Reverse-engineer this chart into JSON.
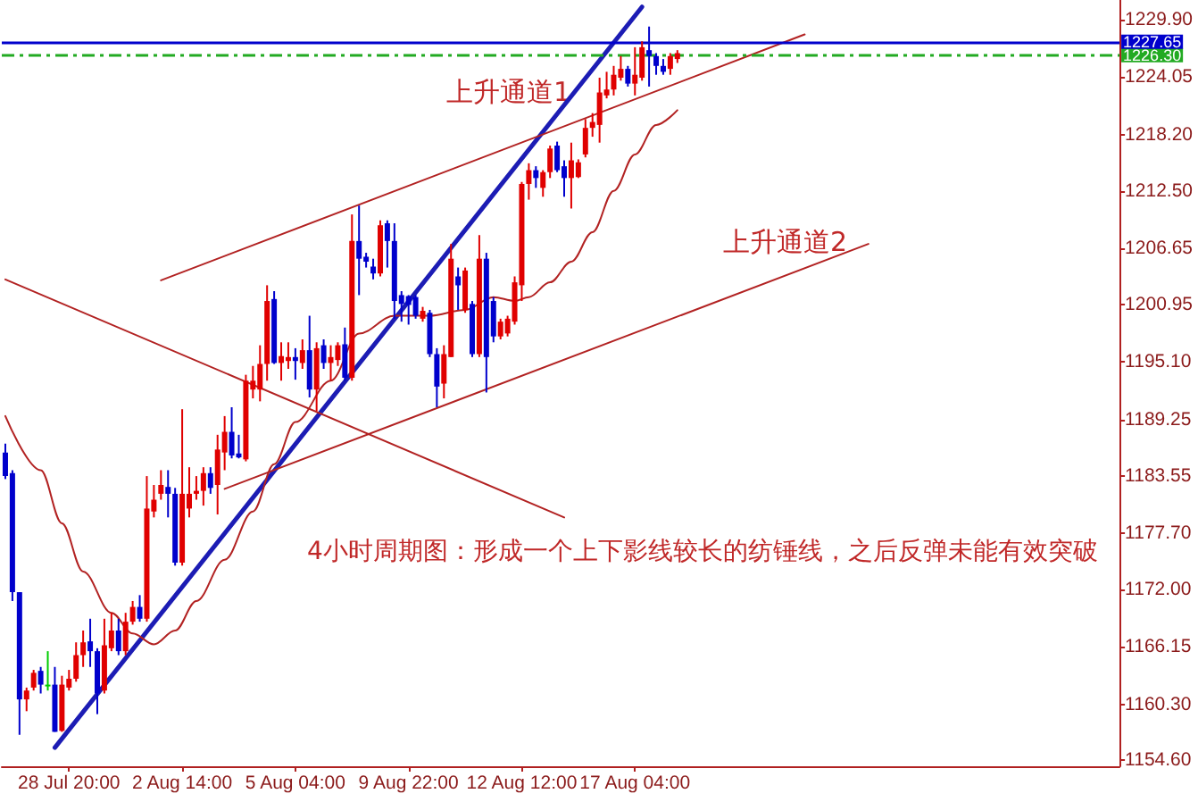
{
  "chart_data": {
    "type": "candlestick",
    "categories": [
      null,
      null,
      null,
      null,
      null,
      null,
      null,
      null,
      null,
      "28 Jul 20:00",
      null,
      null,
      null,
      null,
      null,
      null,
      null,
      null,
      null,
      null,
      null,
      null,
      null,
      null,
      null,
      "2 Aug 14:00",
      null,
      null,
      null,
      null,
      null,
      null,
      null,
      null,
      null,
      null,
      null,
      null,
      null,
      null,
      null,
      "5 Aug 04:00",
      null,
      null,
      null,
      null,
      null,
      null,
      null,
      null,
      null,
      null,
      null,
      null,
      null,
      null,
      null,
      "9 Aug 22:00",
      null,
      null,
      null,
      null,
      null,
      null,
      null,
      null,
      null,
      null,
      null,
      null,
      null,
      null,
      null,
      "12 Aug 12:00",
      null,
      null,
      null,
      null,
      null,
      null,
      null,
      null,
      null,
      null,
      null,
      null,
      null,
      null,
      null,
      "17 Aug 04:00",
      null,
      null,
      null,
      null,
      null,
      null,
      null,
      null,
      null,
      null,
      null,
      null,
      null,
      null,
      null,
      null,
      null,
      null,
      null,
      null,
      null,
      null,
      null,
      null,
      null,
      null,
      null,
      null,
      null,
      null,
      null,
      null,
      null,
      null,
      null,
      null,
      null,
      null,
      null,
      null,
      null,
      null,
      null,
      null,
      null,
      null,
      null,
      null,
      null,
      null,
      null,
      null,
      null,
      null,
      null,
      null,
      null,
      null,
      null,
      null,
      null,
      null,
      null,
      null,
      null,
      null,
      null,
      null
    ],
    "ohlc": [
      [
        1185.9,
        1186.8,
        1183.2,
        1183.5
      ],
      [
        1183.8,
        1184.1,
        1170.8,
        1171.7
      ],
      [
        1171.7,
        1171.7,
        1157.2,
        1160.8
      ],
      [
        1160.8,
        1162.0,
        1159.6,
        1161.7
      ],
      [
        1162.0,
        1163.8,
        1161.7,
        1163.5
      ],
      [
        1163.7,
        1164.1,
        1161.4,
        1162.3
      ],
      [
        1162.3,
        1165.7,
        1161.7,
        1162.3
      ],
      [
        1162.3,
        1164.1,
        1157.5,
        1157.5
      ],
      [
        1157.6,
        1163.2,
        1157.5,
        1162.3
      ],
      [
        1162.0,
        1163.8,
        1161.7,
        1162.9
      ],
      [
        1162.9,
        1166.6,
        1162.6,
        1165.3
      ],
      [
        1165.3,
        1167.8,
        1164.1,
        1166.6
      ],
      [
        1166.7,
        1169.0,
        1164.1,
        1165.7
      ],
      [
        1165.7,
        1166.0,
        1159.3,
        1161.4
      ],
      [
        1161.7,
        1169.0,
        1161.4,
        1166.3
      ],
      [
        1166.0,
        1169.6,
        1165.7,
        1167.8
      ],
      [
        1167.8,
        1169.0,
        1165.3,
        1165.7
      ],
      [
        1165.7,
        1169.6,
        1165.3,
        1168.7
      ],
      [
        1168.7,
        1170.8,
        1168.4,
        1170.2
      ],
      [
        1170.2,
        1171.4,
        1168.7,
        1169.0
      ],
      [
        1169.0,
        1183.5,
        1168.7,
        1180.2
      ],
      [
        1179.9,
        1182.6,
        1179.3,
        1181.1
      ],
      [
        1181.7,
        1184.1,
        1181.1,
        1182.6
      ],
      [
        1182.4,
        1184.1,
        1179.3,
        1181.7
      ],
      [
        1181.7,
        1182.3,
        1174.4,
        1174.7
      ],
      [
        1174.7,
        1190.3,
        1174.4,
        1181.7
      ],
      [
        1180.2,
        1184.4,
        1179.3,
        1181.7
      ],
      [
        1181.7,
        1183.5,
        1181.1,
        1182.0
      ],
      [
        1182.0,
        1184.4,
        1180.5,
        1183.8
      ],
      [
        1183.8,
        1184.4,
        1181.7,
        1182.3
      ],
      [
        1182.6,
        1187.7,
        1179.6,
        1186.2
      ],
      [
        1185.9,
        1189.6,
        1184.1,
        1188.0
      ],
      [
        1188.0,
        1190.5,
        1185.3,
        1185.6
      ],
      [
        1185.8,
        1187.7,
        1185.3,
        1185.4
      ],
      [
        1185.2,
        1193.8,
        1185.0,
        1193.2
      ],
      [
        1192.3,
        1194.7,
        1191.4,
        1193.2
      ],
      [
        1192.3,
        1196.8,
        1191.1,
        1194.9
      ],
      [
        1194.9,
        1202.9,
        1193.2,
        1201.3
      ],
      [
        1201.5,
        1202.3,
        1194.9,
        1195.0
      ],
      [
        1195.0,
        1197.1,
        1193.2,
        1195.7
      ],
      [
        1195.2,
        1197.1,
        1194.4,
        1195.6
      ],
      [
        1195.6,
        1196.5,
        1193.3,
        1195.2
      ],
      [
        1195.0,
        1197.4,
        1194.4,
        1196.3
      ],
      [
        1196.3,
        1199.8,
        1191.5,
        1192.3
      ],
      [
        1192.3,
        1197.1,
        1190.1,
        1196.5
      ],
      [
        1196.8,
        1197.4,
        1194.4,
        1195.0
      ],
      [
        1195.0,
        1196.8,
        1193.2,
        1195.6
      ],
      [
        1195.3,
        1197.1,
        1194.7,
        1196.8
      ],
      [
        1196.9,
        1198.6,
        1193.2,
        1193.5
      ],
      [
        1193.5,
        1210.1,
        1193.2,
        1207.4
      ],
      [
        1207.4,
        1211.0,
        1201.9,
        1205.6
      ],
      [
        1205.8,
        1206.2,
        1204.7,
        1205.3
      ],
      [
        1204.8,
        1205.6,
        1203.5,
        1204.1
      ],
      [
        1204.1,
        1209.5,
        1203.8,
        1209.0
      ],
      [
        1209.2,
        1209.5,
        1204.7,
        1207.4
      ],
      [
        1207.4,
        1209.2,
        1199.5,
        1201.3
      ],
      [
        1201.9,
        1202.3,
        1199.2,
        1201.0
      ],
      [
        1201.8,
        1201.9,
        1198.9,
        1200.9
      ],
      [
        1201.7,
        1201.9,
        1199.5,
        1199.8
      ],
      [
        1199.5,
        1200.7,
        1199.2,
        1200.3
      ],
      [
        1200.1,
        1200.4,
        1195.6,
        1195.9
      ],
      [
        1195.9,
        1196.5,
        1190.5,
        1192.6
      ],
      [
        1192.9,
        1196.8,
        1191.4,
        1195.9
      ],
      [
        1195.6,
        1207.1,
        1195.6,
        1205.6
      ],
      [
        1203.8,
        1204.7,
        1200.4,
        1202.9
      ],
      [
        1200.4,
        1204.7,
        1200.1,
        1204.4
      ],
      [
        1201.0,
        1201.3,
        1195.6,
        1195.9
      ],
      [
        1195.9,
        1208.0,
        1195.6,
        1205.6
      ],
      [
        1205.6,
        1206.2,
        1192.0,
        1195.6
      ],
      [
        1201.3,
        1201.7,
        1197.1,
        1197.7
      ],
      [
        1197.7,
        1199.5,
        1197.4,
        1199.2
      ],
      [
        1198.0,
        1199.8,
        1197.7,
        1199.5
      ],
      [
        1199.2,
        1203.8,
        1198.9,
        1203.2
      ],
      [
        1202.9,
        1213.4,
        1201.3,
        1213.2
      ],
      [
        1213.2,
        1215.3,
        1211.6,
        1214.6
      ],
      [
        1214.6,
        1215.0,
        1212.8,
        1213.8
      ],
      [
        1212.8,
        1214.6,
        1211.9,
        1214.4
      ],
      [
        1214.4,
        1217.1,
        1213.8,
        1216.8
      ],
      [
        1217.1,
        1217.5,
        1214.4,
        1214.6
      ],
      [
        1215.0,
        1215.6,
        1211.9,
        1213.8
      ],
      [
        1213.8,
        1217.4,
        1210.7,
        1215.6
      ],
      [
        1213.9,
        1215.7,
        1213.8,
        1215.4
      ],
      [
        1216.2,
        1219.8,
        1215.9,
        1218.9
      ],
      [
        1218.9,
        1220.4,
        1218.0,
        1219.5
      ],
      [
        1219.2,
        1224.0,
        1217.4,
        1222.5
      ],
      [
        1222.2,
        1224.6,
        1221.9,
        1222.8
      ],
      [
        1222.8,
        1225.2,
        1222.2,
        1224.3
      ],
      [
        1224.0,
        1226.2,
        1223.7,
        1224.9
      ],
      [
        1224.9,
        1225.2,
        1223.1,
        1223.4
      ],
      [
        1223.4,
        1227.1,
        1222.2,
        1224.3
      ],
      [
        1224.0,
        1227.7,
        1223.7,
        1227.1
      ],
      [
        1226.8,
        1229.2,
        1223.1,
        1226.2
      ],
      [
        1226.2,
        1226.5,
        1224.3,
        1225.2
      ],
      [
        1225.2,
        1225.9,
        1224.3,
        1224.6
      ],
      [
        1224.9,
        1226.5,
        1224.3,
        1226.2
      ],
      [
        1225.9,
        1226.8,
        1225.5,
        1226.5
      ],
      null,
      null,
      null,
      null,
      null,
      null,
      null,
      null,
      null,
      null,
      null,
      null,
      null,
      null,
      null,
      null,
      null,
      null,
      null,
      null,
      null,
      null,
      null,
      null,
      null,
      null,
      null,
      null,
      null,
      null,
      null,
      null,
      null,
      null,
      null,
      null,
      null,
      null,
      null,
      null,
      null,
      null,
      null,
      null,
      null,
      null,
      null,
      null,
      null,
      null,
      null,
      null,
      null,
      null,
      null,
      null,
      null,
      null,
      null,
      null,
      null,
      null
    ],
    "colors": [
      "#0000cc",
      "#0000cc",
      "#0000cc",
      "#e00000",
      "#e00000",
      "#0000cc",
      "#00cc00",
      "#0000cc",
      "#e00000",
      "#e00000",
      "#e00000",
      "#e00000",
      "#0000cc",
      "#0000cc",
      "#e00000",
      "#e00000",
      "#0000cc",
      "#e00000",
      "#e00000",
      "#0000cc",
      "#e00000",
      "#e00000",
      "#e00000",
      "#0000cc",
      "#0000cc",
      "#e00000",
      "#e00000",
      "#e00000",
      "#e00000",
      "#0000cc",
      "#e00000",
      "#e00000",
      "#0000cc",
      "#0000cc",
      "#e00000",
      "#e00000",
      "#e00000",
      "#e00000",
      "#0000cc",
      "#e00000",
      "#e00000",
      "#0000cc",
      "#e00000",
      "#0000cc",
      "#e00000",
      "#0000cc",
      "#e00000",
      "#e00000",
      "#0000cc",
      "#e00000",
      "#0000cc",
      "#0000cc",
      "#0000cc",
      "#e00000",
      "#0000cc",
      "#0000cc",
      "#0000cc",
      "#0000cc",
      "#0000cc",
      "#e00000",
      "#0000cc",
      "#0000cc",
      "#e00000",
      "#e00000",
      "#0000cc",
      "#e00000",
      "#0000cc",
      "#e00000",
      "#0000cc",
      "#0000cc",
      "#e00000",
      "#e00000",
      "#e00000",
      "#e00000",
      "#e00000",
      "#0000cc",
      "#e00000",
      "#e00000",
      "#0000cc",
      "#0000cc",
      "#e00000",
      "#e00000",
      "#e00000",
      "#e00000",
      "#e00000",
      "#e00000",
      "#e00000",
      "#e00000",
      "#0000cc",
      "#e00000",
      "#e00000",
      "#0000cc",
      "#0000cc",
      "#0000cc",
      "#e00000",
      "#e00000",
      null,
      null,
      null,
      null,
      null,
      null,
      null,
      null,
      null,
      null,
      null,
      null,
      null,
      null,
      null,
      null,
      null,
      null,
      null,
      null,
      null,
      null,
      null,
      null,
      null,
      null,
      null,
      null,
      null,
      null,
      null,
      null,
      null,
      null,
      null,
      null,
      null,
      null,
      null,
      null,
      null,
      null,
      null,
      null,
      null,
      null,
      null,
      null,
      null,
      null,
      null,
      null,
      null,
      null,
      null,
      null,
      null,
      null,
      null,
      null,
      null,
      null
    ],
    "series": [
      {
        "type": "line",
        "color": "#1c1cb4",
        "values": [
          null,
          null,
          null,
          null,
          null,
          null,
          null,
          1155.9,
          null,
          null,
          null,
          null,
          null,
          null,
          null,
          null,
          null,
          null,
          null,
          null,
          null,
          null,
          null,
          null,
          null,
          null,
          null,
          null,
          null,
          null,
          null,
          null,
          null,
          null,
          null,
          null,
          null,
          null,
          null,
          null,
          null,
          null,
          null,
          null,
          null,
          null,
          null,
          null,
          null,
          null,
          null,
          null,
          null,
          null,
          null,
          null,
          null,
          null,
          null,
          null,
          null,
          null,
          null,
          null,
          null,
          null,
          null,
          null,
          null,
          null,
          null,
          null,
          null,
          null,
          null,
          null,
          null,
          null,
          null,
          null,
          null,
          null,
          null,
          null,
          null,
          null,
          null,
          null,
          null,
          null,
          1231.2,
          null,
          null,
          null,
          null,
          null,
          null,
          null,
          null,
          null,
          null,
          null,
          null,
          null,
          null,
          null,
          null,
          null,
          null,
          null,
          null,
          null,
          null,
          null,
          null,
          null,
          null,
          null,
          null,
          null,
          null,
          null,
          null,
          null,
          null,
          null,
          null,
          null,
          null,
          null,
          null,
          null,
          null,
          null,
          null,
          null,
          null,
          null,
          null,
          null,
          null,
          null,
          null,
          null,
          null,
          null,
          null,
          null,
          null,
          null,
          null,
          null,
          null,
          null,
          null,
          null,
          null,
          null
        ]
      },
      {
        "type": "line",
        "color": "#b22222",
        "values": [
          null,
          null,
          null,
          null,
          null,
          null,
          null,
          null,
          null,
          null,
          null,
          null,
          null,
          null,
          null,
          null,
          null,
          null,
          null,
          null,
          null,
          null,
          1203.4,
          null,
          null,
          null,
          null,
          null,
          null,
          null,
          null,
          null,
          null,
          null,
          null,
          null,
          null,
          null,
          null,
          null,
          null,
          null,
          null,
          null,
          null,
          null,
          null,
          null,
          null,
          null,
          null,
          null,
          null,
          null,
          null,
          null,
          null,
          null,
          null,
          null,
          null,
          null,
          null,
          null,
          null,
          null,
          null,
          null,
          null,
          null,
          null,
          null,
          null,
          null,
          null,
          null,
          null,
          null,
          null,
          null,
          null,
          null,
          null,
          null,
          null,
          null,
          null,
          null,
          null,
          null,
          null,
          null,
          null,
          null,
          null,
          null,
          null,
          null,
          null,
          null,
          null,
          null,
          null,
          null,
          null,
          null,
          null,
          null,
          null,
          null,
          null,
          null,
          null,
          1228.4,
          null,
          null,
          null,
          null,
          null,
          null,
          null,
          null,
          null,
          null,
          null,
          null,
          null,
          null,
          null,
          null,
          null,
          null,
          null,
          null,
          null,
          null,
          null,
          null,
          null,
          null,
          null,
          null,
          null,
          null,
          null,
          null,
          null,
          null,
          null,
          null,
          null,
          null,
          null,
          null,
          null,
          null,
          null,
          null
        ]
      },
      {
        "type": "line",
        "color": "#b22222",
        "values": [
          null,
          null,
          null,
          null,
          null,
          null,
          null,
          null,
          null,
          null,
          null,
          null,
          null,
          null,
          null,
          null,
          null,
          null,
          null,
          null,
          null,
          null,
          null,
          null,
          null,
          null,
          null,
          null,
          null,
          null,
          null,
          1182.2,
          null,
          null,
          null,
          null,
          null,
          null,
          null,
          null,
          null,
          null,
          null,
          null,
          null,
          null,
          null,
          null,
          null,
          null,
          null,
          null,
          null,
          null,
          null,
          null,
          null,
          null,
          null,
          null,
          null,
          null,
          null,
          null,
          null,
          null,
          null,
          null,
          null,
          null,
          null,
          null,
          null,
          null,
          null,
          null,
          null,
          null,
          null,
          null,
          null,
          null,
          null,
          null,
          null,
          null,
          null,
          null,
          null,
          null,
          null,
          null,
          null,
          null,
          null,
          null,
          null,
          null,
          null,
          null,
          null,
          null,
          null,
          null,
          null,
          null,
          null,
          null,
          null,
          null,
          null,
          null,
          null,
          null,
          null,
          null,
          null,
          null,
          null,
          null,
          null,
          null,
          1207.1,
          null,
          null,
          null,
          null,
          null,
          null,
          null,
          null,
          null,
          null,
          null,
          null,
          null,
          null,
          null,
          null,
          null,
          null,
          null,
          null,
          null,
          null,
          null,
          null,
          null,
          null,
          null,
          null,
          null,
          null,
          null,
          null,
          null,
          null,
          null
        ]
      },
      {
        "type": "line",
        "color": "#b22222",
        "values": [
          1203.5,
          null,
          null,
          null,
          null,
          null,
          null,
          null,
          null,
          null,
          null,
          null,
          null,
          null,
          null,
          null,
          null,
          null,
          null,
          null,
          null,
          null,
          null,
          null,
          null,
          null,
          null,
          null,
          null,
          null,
          null,
          null,
          null,
          null,
          null,
          null,
          null,
          null,
          null,
          null,
          null,
          null,
          null,
          null,
          null,
          null,
          null,
          null,
          null,
          null,
          null,
          null,
          null,
          null,
          null,
          null,
          null,
          null,
          null,
          null,
          null,
          null,
          null,
          null,
          null,
          null,
          null,
          null,
          null,
          null,
          null,
          null,
          null,
          null,
          null,
          null,
          null,
          null,
          null,
          1179.3,
          null,
          null,
          null,
          null,
          null,
          null,
          null,
          null,
          null,
          null,
          null,
          null,
          null,
          null,
          null,
          null,
          null,
          null,
          null,
          null,
          null,
          null,
          null,
          null,
          null,
          null,
          null,
          null,
          null,
          null,
          null,
          null,
          null,
          null,
          null,
          null,
          null,
          null,
          null,
          null,
          null,
          null,
          null,
          null,
          null,
          null,
          null,
          null,
          null,
          null,
          null,
          null,
          null,
          null,
          null,
          null,
          null,
          null,
          null,
          null,
          null,
          null,
          null,
          null,
          null,
          null,
          null,
          null,
          null,
          null,
          null,
          null,
          null,
          null,
          null,
          null,
          null,
          null
        ]
      },
      {
        "type": "line",
        "color": "#b22222",
        "values": [
          1189.6,
          null,
          null,
          null,
          null,
          1184.1,
          null,
          null,
          1178.7,
          null,
          null,
          1173.8,
          null,
          null,
          null,
          1169.6,
          null,
          null,
          1167.5,
          null,
          null,
          1166.4,
          null,
          null,
          1167.8,
          null,
          null,
          1170.8,
          null,
          null,
          null,
          1175.0,
          null,
          null,
          null,
          1179.9,
          null,
          null,
          1184.7,
          null,
          null,
          1189.0,
          null,
          null,
          null,
          null,
          1193.2,
          null,
          null,
          null,
          1198.0,
          null,
          null,
          null,
          null,
          1199.8,
          null,
          null,
          null,
          null,
          1199.8,
          null,
          null,
          null,
          null,
          1200.4,
          null,
          null,
          null,
          1201.7,
          null,
          null,
          1201.3,
          null,
          1201.7,
          null,
          null,
          1203.2,
          null,
          null,
          1205.3,
          null,
          null,
          1208.3,
          null,
          null,
          1212.5,
          null,
          null,
          1216.2,
          null,
          null,
          1219.2,
          null,
          null,
          1220.7,
          null,
          null,
          null,
          null,
          null,
          null,
          null,
          null,
          null,
          null,
          null,
          null,
          null,
          null,
          null,
          null,
          null,
          null,
          null,
          null,
          null,
          null,
          null,
          null,
          null,
          null,
          null,
          null,
          null,
          null,
          null,
          null,
          null,
          null,
          null,
          null,
          null,
          null,
          null,
          null,
          null,
          null,
          null,
          null,
          null,
          null,
          null,
          null,
          null,
          null,
          null,
          null,
          null,
          null,
          null,
          null,
          null,
          null,
          null,
          null,
          null,
          null
        ]
      }
    ],
    "ylim": [
      1154.0,
      1231.9
    ],
    "yticks": [
      {
        "value": 1229.9,
        "label": "1229.90"
      },
      {
        "value": 1224.05,
        "label": "1224.05"
      },
      {
        "value": 1218.2,
        "label": "1218.20"
      },
      {
        "value": 1212.5,
        "label": "1212.50"
      },
      {
        "value": 1206.65,
        "label": "1206.65"
      },
      {
        "value": 1200.95,
        "label": "1200.95"
      },
      {
        "value": 1195.1,
        "label": "1195.10"
      },
      {
        "value": 1189.25,
        "label": "1189.25"
      },
      {
        "value": 1183.55,
        "label": "1183.55"
      },
      {
        "value": 1177.7,
        "label": "1177.70"
      },
      {
        "value": 1172.0,
        "label": "1172.00"
      },
      {
        "value": 1166.15,
        "label": "1166.15"
      },
      {
        "value": 1160.3,
        "label": "1160.30"
      },
      {
        "value": 1154.6,
        "label": "1154.60"
      }
    ],
    "ref_lines": [
      {
        "axis": "y",
        "value": 1227.65,
        "label": "1227.65",
        "color": "#0000cc"
      },
      {
        "axis": "y",
        "value": 1226.3,
        "label": "1226.30",
        "color": "#22aa22",
        "line_style": "dashed"
      }
    ],
    "annotations": [
      "上升通道1",
      "上升通道2",
      "4小时周期图：形成一个上下影线较长的纺锤线，之后反弹未能有效突破"
    ]
  }
}
